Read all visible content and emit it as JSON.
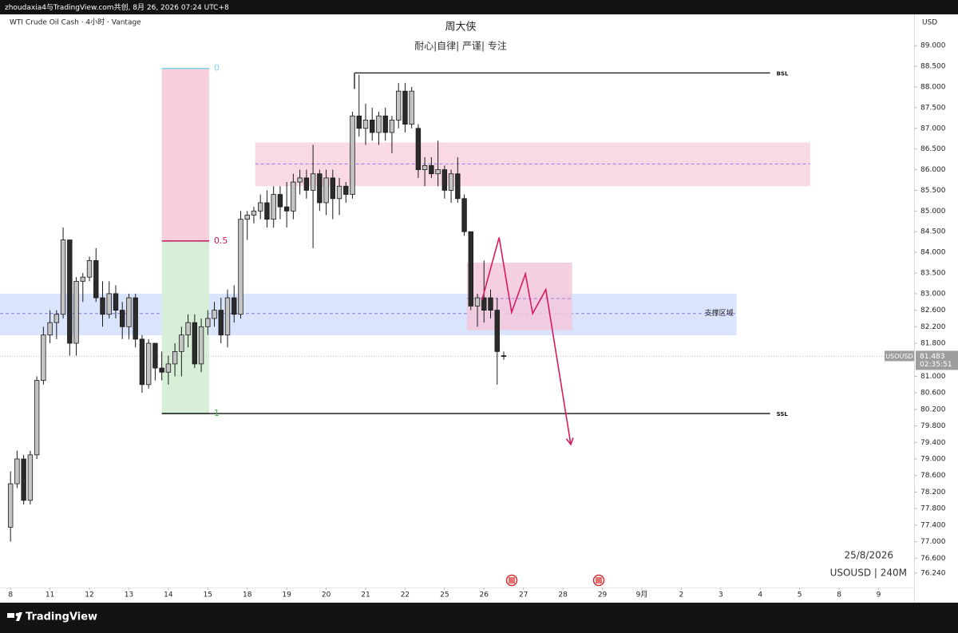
{
  "top_bar": {
    "text": "zhoudaxia4与TradingView.com共创, 8月 26, 2026 07:24 UTC+8"
  },
  "footer": {
    "logo": "TradingView"
  },
  "chart_data": {
    "type": "candlestick",
    "symbol_info": "WTI Crude Oil Cash · 4小时 · Vantage",
    "currency": "USD",
    "title": "周大侠",
    "subtitle": "耐心|自律| 严谨| 专注",
    "info_lines": [
      "25/8/2026",
      "USOUSD | 240M"
    ],
    "up_color": "#c4c4c4",
    "down_color": "#2b2b2b",
    "x": [
      0,
      1,
      2,
      3,
      4,
      5,
      6,
      7,
      8,
      9,
      10,
      11,
      12,
      13,
      14,
      15,
      16,
      17,
      18,
      19,
      20,
      21,
      22,
      23,
      24,
      25,
      26,
      27,
      28,
      29,
      30,
      31,
      32,
      33,
      34,
      35,
      36,
      37,
      38,
      39,
      40,
      41,
      42,
      43,
      44,
      45,
      46,
      47,
      48,
      49,
      50,
      51,
      52,
      53,
      54,
      55,
      56,
      57,
      58,
      59,
      60,
      61,
      62,
      63,
      64,
      65,
      66,
      67,
      68,
      69,
      70,
      71,
      72,
      73,
      74,
      75
    ],
    "open": [
      77.35,
      78.4,
      79.0,
      78.0,
      79.1,
      80.9,
      82.0,
      82.3,
      82.5,
      84.3,
      81.8,
      83.3,
      83.4,
      83.8,
      82.9,
      82.5,
      83.0,
      82.6,
      82.2,
      82.9,
      81.9,
      80.8,
      81.8,
      81.2,
      81.1,
      81.3,
      81.6,
      82.0,
      82.3,
      81.3,
      82.2,
      82.4,
      82.6,
      82.0,
      82.9,
      82.5,
      84.8,
      84.9,
      85.0,
      85.2,
      84.8,
      85.4,
      85.1,
      85.0,
      85.7,
      85.8,
      85.5,
      85.9,
      85.2,
      85.8,
      85.3,
      85.6,
      85.4,
      87.3,
      87.0,
      87.2,
      86.9,
      87.3,
      86.9,
      87.2,
      87.9,
      87.1,
      87.0,
      86.0,
      86.1,
      85.9,
      86.0,
      85.5,
      85.9,
      85.3,
      84.5,
      82.7,
      82.9,
      82.9,
      82.6,
      81.5
    ],
    "high": [
      78.7,
      79.2,
      79.1,
      79.2,
      81.0,
      82.2,
      82.6,
      82.6,
      84.6,
      84.3,
      83.4,
      83.5,
      83.9,
      84.1,
      83.3,
      83.3,
      83.2,
      82.8,
      83.0,
      83.0,
      82.0,
      81.9,
      81.8,
      81.6,
      81.5,
      81.8,
      82.2,
      82.5,
      82.5,
      82.4,
      82.6,
      82.8,
      82.9,
      83.1,
      83.2,
      85.0,
      85.0,
      85.1,
      85.4,
      85.5,
      85.6,
      85.6,
      85.7,
      85.9,
      86.0,
      86.0,
      86.6,
      86.0,
      86.0,
      86.0,
      85.8,
      85.7,
      87.4,
      88.3,
      87.6,
      87.5,
      87.4,
      87.5,
      87.3,
      88.1,
      88.1,
      88.0,
      87.1,
      86.3,
      86.3,
      86.7,
      86.1,
      86.0,
      86.3,
      85.4,
      84.5,
      83.0,
      83.8,
      83.1,
      82.9,
      81.6
    ],
    "low": [
      77.0,
      78.3,
      77.9,
      77.9,
      79.0,
      80.8,
      81.8,
      81.9,
      82.4,
      81.5,
      81.5,
      82.8,
      83.3,
      82.8,
      82.2,
      82.4,
      82.4,
      81.9,
      81.9,
      81.7,
      80.6,
      80.7,
      80.9,
      80.9,
      80.8,
      81.0,
      81.0,
      81.7,
      81.2,
      81.1,
      82.0,
      82.2,
      81.8,
      81.7,
      82.3,
      82.4,
      84.3,
      84.7,
      84.8,
      84.6,
      84.6,
      84.8,
      84.6,
      84.8,
      85.4,
      85.3,
      84.1,
      85.0,
      84.9,
      84.8,
      84.9,
      85.2,
      85.3,
      86.8,
      86.6,
      86.7,
      86.6,
      86.7,
      86.4,
      87.0,
      86.9,
      87.0,
      85.8,
      85.6,
      85.8,
      85.6,
      85.3,
      85.2,
      85.2,
      84.4,
      82.6,
      82.2,
      82.3,
      82.4,
      80.8,
      81.4
    ],
    "close": [
      78.4,
      79.0,
      78.0,
      79.1,
      80.9,
      82.0,
      82.3,
      82.5,
      84.3,
      81.8,
      83.3,
      83.4,
      83.8,
      82.9,
      82.5,
      83.0,
      82.6,
      82.2,
      82.9,
      81.9,
      80.8,
      81.8,
      81.2,
      81.1,
      81.3,
      81.6,
      82.0,
      82.3,
      81.3,
      82.2,
      82.4,
      82.6,
      82.0,
      82.9,
      82.5,
      84.8,
      84.9,
      85.0,
      85.2,
      84.8,
      85.4,
      85.1,
      85.0,
      85.7,
      85.8,
      85.5,
      85.9,
      85.2,
      85.8,
      85.3,
      85.6,
      85.4,
      87.3,
      87.0,
      87.2,
      86.9,
      87.3,
      86.9,
      87.2,
      87.9,
      87.1,
      87.9,
      86.0,
      86.1,
      85.9,
      86.0,
      85.5,
      85.9,
      85.3,
      84.5,
      82.7,
      82.9,
      82.6,
      82.6,
      81.6,
      81.483
    ],
    "xlim": [
      -1.6,
      137.4
    ],
    "xticks": [
      {
        "value": 0,
        "label": "8"
      },
      {
        "value": 6,
        "label": "11"
      },
      {
        "value": 12,
        "label": "12"
      },
      {
        "value": 18,
        "label": "13"
      },
      {
        "value": 24,
        "label": "14"
      },
      {
        "value": 30,
        "label": "15"
      },
      {
        "value": 36,
        "label": "18"
      },
      {
        "value": 42,
        "label": "19"
      },
      {
        "value": 48,
        "label": "20"
      },
      {
        "value": 54,
        "label": "21"
      },
      {
        "value": 60,
        "label": "22"
      },
      {
        "value": 66,
        "label": "25"
      },
      {
        "value": 72,
        "label": "26"
      },
      {
        "value": 78,
        "label": "27"
      },
      {
        "value": 84,
        "label": "28"
      },
      {
        "value": 90,
        "label": "29"
      },
      {
        "value": 96,
        "label": "9月"
      },
      {
        "value": 102,
        "label": "2"
      },
      {
        "value": 108,
        "label": "3"
      },
      {
        "value": 114,
        "label": "4"
      },
      {
        "value": 120,
        "label": "5"
      },
      {
        "value": 126,
        "label": "8"
      },
      {
        "value": 132,
        "label": "9"
      }
    ],
    "ylim": [
      75.91,
      89.68
    ],
    "yticks": [
      {
        "value": 89,
        "label": "89.000"
      },
      {
        "value": 88.5,
        "label": "88.500"
      },
      {
        "value": 88,
        "label": "88.000"
      },
      {
        "value": 87.5,
        "label": "87.500"
      },
      {
        "value": 87,
        "label": "87.000"
      },
      {
        "value": 86.5,
        "label": "86.500"
      },
      {
        "value": 86,
        "label": "86.000"
      },
      {
        "value": 85.5,
        "label": "85.500"
      },
      {
        "value": 85,
        "label": "85.000"
      },
      {
        "value": 84.5,
        "label": "84.500"
      },
      {
        "value": 84,
        "label": "84.000"
      },
      {
        "value": 83.5,
        "label": "83.500"
      },
      {
        "value": 83,
        "label": "83.000"
      },
      {
        "value": 82.6,
        "label": "82.600"
      },
      {
        "value": 82.2,
        "label": "82.200"
      },
      {
        "value": 81.8,
        "label": "81.800"
      },
      {
        "value": 81,
        "label": "81.000"
      },
      {
        "value": 80.6,
        "label": "80.600"
      },
      {
        "value": 80.2,
        "label": "80.200"
      },
      {
        "value": 79.8,
        "label": "79.800"
      },
      {
        "value": 79.4,
        "label": "79.400"
      },
      {
        "value": 79,
        "label": "79.000"
      },
      {
        "value": 78.6,
        "label": "78.600"
      },
      {
        "value": 78.2,
        "label": "78.200"
      },
      {
        "value": 77.8,
        "label": "77.800"
      },
      {
        "value": 77.4,
        "label": "77.400"
      },
      {
        "value": 77,
        "label": "77.000"
      },
      {
        "value": 76.6,
        "label": "76.600"
      },
      {
        "value": 76.24,
        "label": "76.240"
      }
    ],
    "grid": false,
    "last_price": {
      "symbol": "USOUSD",
      "value": 81.483,
      "countdown": "02:35:51"
    },
    "zones": [
      {
        "x": [
          37.2,
          121.6
        ],
        "from": 85.6,
        "to": 86.66,
        "mid": 86.14,
        "color": "#f8d3df"
      },
      {
        "x": [
          -1.6,
          110.4
        ],
        "from": 81.99,
        "to": 83.0,
        "mid": 82.52,
        "color": "#d3dffb",
        "label": "支撑区域"
      },
      {
        "x": [
          69.4,
          85.4
        ],
        "from": 82.12,
        "to": 83.75,
        "mid": 82.88,
        "color": "#f3c8da"
      }
    ],
    "levels": [
      {
        "label": "BSL",
        "value": 88.34,
        "x": [
          52.3,
          115.5
        ]
      },
      {
        "label": "SSL",
        "value": 80.1,
        "x": [
          23.0,
          115.5
        ]
      }
    ],
    "fib": {
      "x": [
        23.0,
        30.2
      ],
      "top": 88.45,
      "bottom": 80.1,
      "levels": [
        0,
        0.5,
        1
      ],
      "colors": [
        "#7fd3e8",
        "#c2185b",
        "#4caf50"
      ]
    },
    "projection": {
      "color": "#d81b60",
      "x": [
        71.7,
        74.3,
        76.2,
        78.3,
        79.4,
        81.4,
        85.2
      ],
      "y": [
        82.85,
        84.36,
        82.55,
        83.48,
        82.52,
        83.1,
        79.35
      ]
    }
  }
}
